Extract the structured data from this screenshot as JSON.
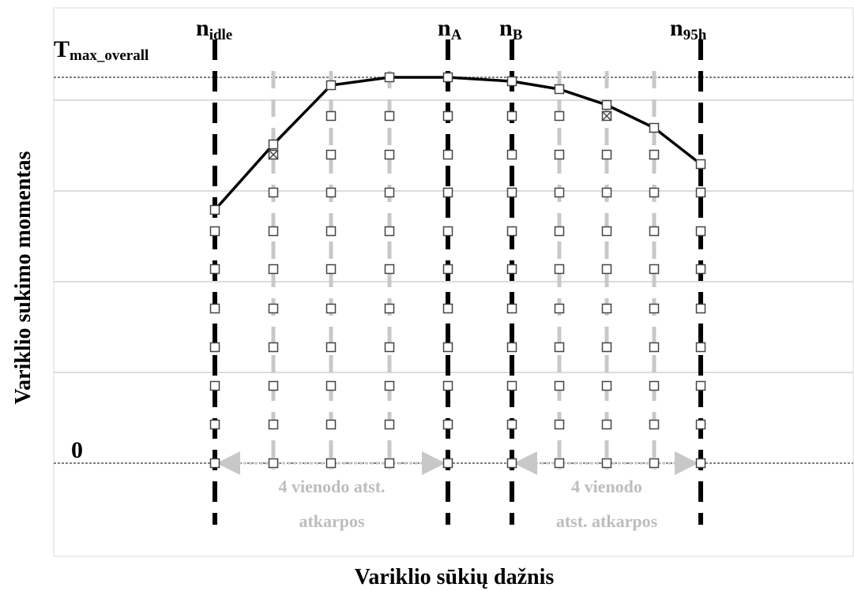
{
  "diagram": {
    "y_axis_label": "Variklio sukimo momentas",
    "x_axis_label": "Variklio sūkių dažnis",
    "t_max": {
      "main": "T",
      "sub": "max_overall"
    },
    "zero": "0",
    "speeds": [
      {
        "main": "n",
        "sub": "idle"
      },
      {
        "main": "n",
        "sub": "A"
      },
      {
        "main": "n",
        "sub": "B"
      },
      {
        "main": "n",
        "sub": "95h"
      }
    ],
    "notes": [
      [
        "4 vienodo atst.",
        "atkarpos"
      ],
      [
        "4 vienodo",
        "atst. atkarpos"
      ]
    ]
  }
}
